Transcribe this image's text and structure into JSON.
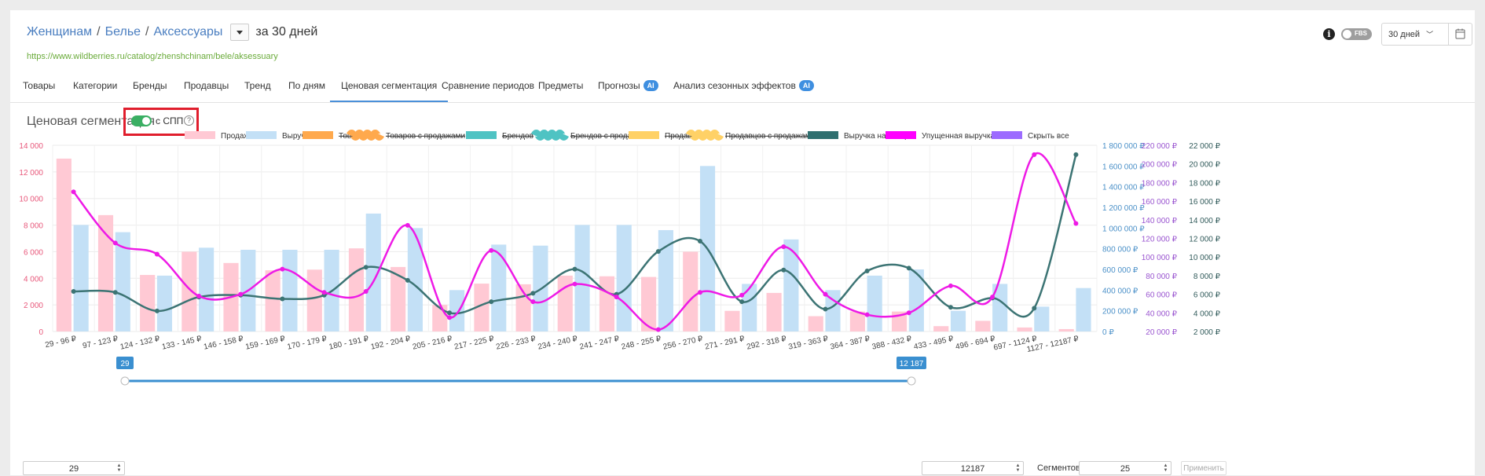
{
  "breadcrumb": {
    "items": [
      "Женщинам",
      "Белье",
      "Аксессуары"
    ],
    "period_text": "за 30 дней"
  },
  "url": "https://www.wildberries.ru/catalog/zhenshchinam/bele/aksessuary",
  "tabs": [
    {
      "label": "Товары",
      "ai": false,
      "active": false
    },
    {
      "label": "Категории",
      "ai": false,
      "active": false
    },
    {
      "label": "Бренды",
      "ai": false,
      "active": false
    },
    {
      "label": "Продавцы",
      "ai": false,
      "active": false
    },
    {
      "label": "Тренд",
      "ai": false,
      "active": false
    },
    {
      "label": "По дням",
      "ai": false,
      "active": false
    },
    {
      "label": "Ценовая сегментация",
      "ai": false,
      "active": true
    },
    {
      "label": "Сравнение периодов",
      "ai": false,
      "active": false
    },
    {
      "label": "Предметы",
      "ai": false,
      "active": false
    },
    {
      "label": "Прогнозы",
      "ai": true,
      "active": false
    },
    {
      "label": "Анализ сезонных эффектов",
      "ai": true,
      "active": false
    }
  ],
  "ai_badge": "AI",
  "header": {
    "info_icon": "i",
    "fbs_label": "FBS",
    "period_select": "30 дней"
  },
  "section": {
    "title": "Ценовая сегментация",
    "toggle_label": "с СПП",
    "help_icon": "?"
  },
  "controls": {
    "min_value": "29",
    "max_value": "12187",
    "slider_min_label": "29",
    "slider_max_label": "12 187",
    "segments_label": "Сегментов",
    "segments_value": "25",
    "apply_label": "Применить"
  },
  "colors": {
    "sales": "#ffc9d4",
    "revenue": "#c3e0f6",
    "revenue_per_item": "#3c7474",
    "lost_revenue": "#ee1ae6",
    "left_axis": "#e8587b",
    "revenue_axis": "#4a90c8",
    "lost_axis": "#9a55d0",
    "rpi_axis": "#335c5c"
  },
  "chart_data": {
    "type": "bar",
    "categories": [
      "29 - 96 ₽",
      "97 - 123 ₽",
      "124 - 132 ₽",
      "133 - 145 ₽",
      "146 - 158 ₽",
      "159 - 169 ₽",
      "170 - 179 ₽",
      "180 - 191 ₽",
      "192 - 204 ₽",
      "205 - 216 ₽",
      "217 - 225 ₽",
      "226 - 233 ₽",
      "234 - 240 ₽",
      "241 - 247 ₽",
      "248 - 255 ₽",
      "256 - 270 ₽",
      "271 - 291 ₽",
      "292 - 318 ₽",
      "319 - 363 ₽",
      "364 - 387 ₽",
      "388 - 432 ₽",
      "433 - 495 ₽",
      "496 - 694 ₽",
      "697 - 1124 ₽",
      "1127 - 12187 ₽"
    ],
    "series": [
      {
        "name": "Продажи",
        "type": "bar",
        "axis": "sales",
        "values": [
          13000,
          8750,
          4250,
          6000,
          5150,
          4600,
          4650,
          6250,
          4850,
          2000,
          3600,
          3550,
          4200,
          4150,
          4100,
          6000,
          1550,
          2900,
          1150,
          1500,
          1500,
          400,
          800,
          300,
          180
        ]
      },
      {
        "name": "Выручка",
        "type": "bar",
        "axis": "revenue",
        "values": [
          1030000,
          960000,
          540000,
          810000,
          790000,
          790000,
          790000,
          1140000,
          1000000,
          400000,
          840000,
          830000,
          1030000,
          1030000,
          980000,
          1600000,
          460000,
          890000,
          400000,
          540000,
          600000,
          200000,
          460000,
          240000,
          420000
        ]
      },
      {
        "name": "Выручка на товар",
        "type": "line",
        "axis": "revenue_per_item",
        "values": [
          6300,
          6200,
          4200,
          5700,
          5900,
          5500,
          5900,
          8900,
          7500,
          4000,
          5200,
          6100,
          8700,
          6000,
          10600,
          11700,
          5200,
          8600,
          4400,
          8500,
          8800,
          4600,
          5600,
          4500,
          21000
        ]
      },
      {
        "name": "Упущенная выручка",
        "type": "line",
        "axis": "lost_revenue",
        "values": [
          170000,
          115000,
          103000,
          58000,
          60000,
          87000,
          62000,
          63000,
          134000,
          35000,
          107000,
          52000,
          71000,
          57000,
          22000,
          62000,
          59000,
          111000,
          60000,
          38000,
          40000,
          69000,
          57000,
          210000,
          136000
        ]
      }
    ],
    "legend": [
      {
        "name": "Продажи",
        "color": "#ffc9d4",
        "striked": false,
        "wavy": false
      },
      {
        "name": "Выручка",
        "color": "#c3e0f6",
        "striked": false,
        "wavy": false
      },
      {
        "name": "Товаров",
        "color": "#ffa94d",
        "striked": true,
        "wavy": false
      },
      {
        "name": "Товаров с продажами",
        "color": "#ffa94d",
        "striked": true,
        "wavy": true
      },
      {
        "name": "Брендов",
        "color": "#4fc3c3",
        "striked": true,
        "wavy": false
      },
      {
        "name": "Брендов с продажами",
        "color": "#4fc3c3",
        "striked": true,
        "wavy": true
      },
      {
        "name": "Продавцов",
        "color": "#ffd166",
        "striked": true,
        "wavy": false
      },
      {
        "name": "Продавцов с продажами",
        "color": "#ffd166",
        "striked": true,
        "wavy": true
      },
      {
        "name": "Выручка на товар",
        "color": "#2f6f6f",
        "striked": false,
        "wavy": false
      },
      {
        "name": "Упущенная выручка",
        "color": "#ff00ff",
        "striked": false,
        "wavy": false
      },
      {
        "name": "Скрыть все",
        "color": "#9c6bff",
        "striked": false,
        "wavy": false
      }
    ],
    "axes": {
      "sales": {
        "min": 0,
        "max": 14000,
        "step": 2000,
        "ticks": [
          "0",
          "2 000",
          "4 000",
          "6 000",
          "8 000",
          "10 000",
          "12 000",
          "14 000"
        ]
      },
      "revenue": {
        "min": 0,
        "max": 1800000,
        "step": 200000,
        "ticks": [
          "0 ₽",
          "200 000 ₽",
          "400 000 ₽",
          "600 000 ₽",
          "800 000 ₽",
          "1 000 000 ₽",
          "1 200 000 ₽",
          "1 400 000 ₽",
          "1 600 000 ₽",
          "1 800 000 ₽"
        ]
      },
      "lost_revenue": {
        "min": 20000,
        "max": 220000,
        "step": 20000,
        "ticks": [
          "20 000 ₽",
          "40 000 ₽",
          "60 000 ₽",
          "80 000 ₽",
          "100 000 ₽",
          "120 000 ₽",
          "140 000 ₽",
          "160 000 ₽",
          "180 000 ₽",
          "200 000 ₽",
          "220 000 ₽"
        ]
      },
      "revenue_per_item": {
        "min": 2000,
        "max": 22000,
        "step": 2000,
        "ticks": [
          "2 000 ₽",
          "4 000 ₽",
          "6 000 ₽",
          "8 000 ₽",
          "10 000 ₽",
          "12 000 ₽",
          "14 000 ₽",
          "16 000 ₽",
          "18 000 ₽",
          "20 000 ₽",
          "22 000 ₽"
        ]
      }
    },
    "grid": true,
    "legend_position": "top"
  }
}
